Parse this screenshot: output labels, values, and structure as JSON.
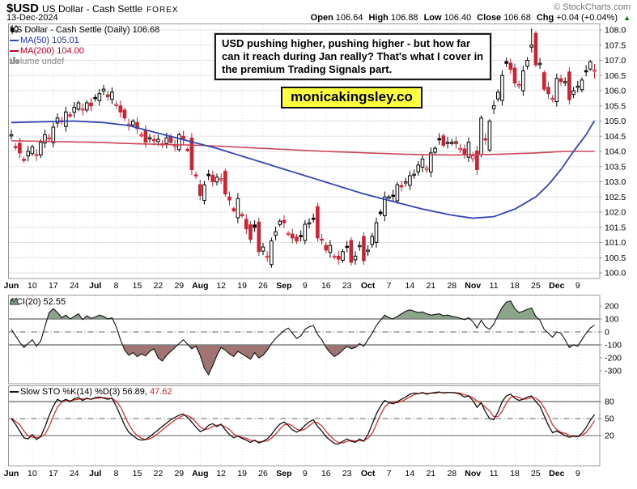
{
  "header": {
    "symbol": "$USD",
    "name": "US Dollar - Cash Settle",
    "exchange": "FOREX",
    "copyright": "© StockCharts.com",
    "date": "13-Dec-2024",
    "quote": {
      "open_label": "Open",
      "open_value": "106.64",
      "high_label": "High",
      "high_value": "106.88",
      "low_label": "Low",
      "low_value": "106.40",
      "close_label": "Close",
      "close_value": "106.68",
      "chg_label": "Chg",
      "chg_value": "+0.04 (+0.04%)",
      "chg_arrow": "▲"
    }
  },
  "price_panel": {
    "legend_title": "US Dollar - Cash Settle (Daily) 106.68",
    "legend_ma50": "MA(50) 105.01",
    "legend_ma200": "MA(200) 104.00",
    "legend_volume": "Volume undef",
    "annotation": "USD pushing higher, pushing higher - but how far can it reach during Jan really? That's what I cover in the premium Trading Signals part.",
    "watermark": "monicakingsley.co",
    "y_ticks": [
      "108.0",
      "107.5",
      "107.0",
      "106.5",
      "106.0",
      "105.5",
      "105.0",
      "104.5",
      "104.0",
      "103.5",
      "103.0",
      "102.5",
      "102.0",
      "101.5",
      "101.0",
      "100.5",
      "100.0"
    ]
  },
  "cci_panel": {
    "legend": "CCI(20) 52.55",
    "y_ticks": [
      "200",
      "100",
      "0",
      "-100",
      "-200",
      "-300"
    ]
  },
  "sto_panel": {
    "legend_black": "Slow STO %K(14) %D(3) 56.89,",
    "legend_red": "47.62",
    "y_ticks": [
      "80",
      "50",
      "20"
    ]
  },
  "x_axis": [
    [
      "Jun",
      1
    ],
    [
      "10",
      0
    ],
    [
      "17",
      0
    ],
    [
      "24",
      0
    ],
    [
      "Jul",
      1
    ],
    [
      "8",
      0
    ],
    [
      "15",
      0
    ],
    [
      "22",
      0
    ],
    [
      "29",
      0
    ],
    [
      "Aug",
      1
    ],
    [
      "12",
      0
    ],
    [
      "19",
      0
    ],
    [
      "26",
      0
    ],
    [
      "Sep",
      1
    ],
    [
      "9",
      0
    ],
    [
      "16",
      0
    ],
    [
      "23",
      0
    ],
    [
      "Oct",
      1
    ],
    [
      "7",
      0
    ],
    [
      "14",
      0
    ],
    [
      "21",
      0
    ],
    [
      "28",
      0
    ],
    [
      "Nov",
      1
    ],
    [
      "11",
      0
    ],
    [
      "18",
      0
    ],
    [
      "25",
      0
    ],
    [
      "Dec",
      1
    ],
    [
      "9",
      0
    ]
  ],
  "colors": {
    "candle_up": "#000000",
    "candle_down": "#cc2233",
    "ma50": "#3346b4",
    "ma200": "#cc4455",
    "cci_line": "#111111",
    "cci_fill_up": "#8ba58b",
    "cci_fill_dn": "#a17474",
    "sto_k": "#111111",
    "sto_d": "#e62222",
    "grid": "#e6e6e6",
    "grid_dot": "#d9d9d9",
    "border": "#999999",
    "ref_line": "#808080",
    "highlight": "#ffff3d",
    "chg_up": "#007a00"
  },
  "chart_data": {
    "type": "candlestick",
    "title": "US Dollar - Cash Settle (Daily)",
    "frequency": "daily",
    "x_span": "Jun 2024 to 13-Dec-2024",
    "price_range": [
      100.0,
      108.0
    ],
    "closes": [
      104.55,
      104.15,
      103.95,
      103.7,
      104.0,
      104.15,
      103.9,
      104.3,
      104.55,
      104.45,
      104.8,
      105.1,
      105.0,
      105.3,
      105.2,
      105.45,
      105.6,
      105.4,
      105.6,
      105.5,
      105.75,
      105.9,
      106.05,
      105.8,
      105.95,
      105.55,
      105.3,
      105.1,
      104.9,
      105.0,
      104.75,
      104.55,
      104.3,
      104.45,
      104.35,
      104.4,
      104.25,
      104.45,
      104.3,
      104.2,
      104.55,
      104.4,
      104.05,
      103.4,
      103.2,
      102.55,
      102.9,
      103.2,
      103.0,
      103.15,
      103.1,
      102.6,
      102.4,
      102.05,
      102.45,
      101.9,
      101.45,
      101.1,
      101.5,
      100.7,
      100.85,
      100.55,
      101.05,
      101.35,
      101.7,
      101.65,
      101.3,
      101.15,
      101.05,
      101.2,
      101.6,
      101.65,
      101.8,
      101.15,
      101.1,
      100.75,
      100.9,
      100.55,
      100.45,
      100.7,
      100.85,
      100.35,
      100.55,
      100.9,
      100.4,
      100.75,
      101.2,
      101.65,
      101.95,
      102.5,
      102.5,
      102.55,
      102.9,
      102.85,
      103.0,
      103.2,
      103.25,
      103.55,
      103.75,
      103.45,
      103.95,
      104.1,
      104.4,
      104.2,
      104.3,
      104.3,
      104.25,
      104.1,
      103.9,
      104.3,
      103.85,
      103.4,
      105.1,
      104.4,
      105.0,
      105.5,
      105.95,
      106.5,
      106.9,
      106.7,
      106.25,
      106.2,
      106.65,
      107.0,
      107.5,
      106.85,
      106.9,
      106.05,
      105.9,
      105.75,
      106.4,
      106.3,
      106.3,
      105.7,
      106.0,
      106.15,
      106.35,
      106.65,
      106.95,
      106.68
    ],
    "last_candle": {
      "open": 106.64,
      "high": 106.88,
      "low": 106.4,
      "close": 106.68
    },
    "high_spike": {
      "index": 124,
      "high": 108.05
    },
    "ma50_points": [
      [
        0,
        104.95
      ],
      [
        15,
        105.0
      ],
      [
        22,
        104.95
      ],
      [
        28,
        104.85
      ],
      [
        35,
        104.6
      ],
      [
        42,
        104.35
      ],
      [
        49,
        104.1
      ],
      [
        56,
        103.8
      ],
      [
        63,
        103.5
      ],
      [
        70,
        103.2
      ],
      [
        77,
        102.9
      ],
      [
        84,
        102.6
      ],
      [
        91,
        102.35
      ],
      [
        98,
        102.1
      ],
      [
        105,
        101.9
      ],
      [
        110,
        101.8
      ],
      [
        115,
        101.85
      ],
      [
        120,
        102.1
      ],
      [
        125,
        102.5
      ],
      [
        128,
        102.9
      ],
      [
        131,
        103.4
      ],
      [
        134,
        104.0
      ],
      [
        137,
        104.55
      ],
      [
        139,
        105.01
      ]
    ],
    "ma200_points": [
      [
        0,
        104.35
      ],
      [
        20,
        104.3
      ],
      [
        30,
        104.25
      ],
      [
        45,
        104.2
      ],
      [
        60,
        104.1
      ],
      [
        75,
        104.0
      ],
      [
        85,
        103.95
      ],
      [
        95,
        103.9
      ],
      [
        105,
        103.88
      ],
      [
        115,
        103.9
      ],
      [
        125,
        103.95
      ],
      [
        132,
        104.0
      ],
      [
        139,
        104.0
      ]
    ],
    "cci_range": [
      -350,
      280
    ],
    "cci": [
      20,
      -30,
      -80,
      -120,
      -90,
      -60,
      -110,
      -70,
      40,
      150,
      180,
      150,
      110,
      130,
      100,
      120,
      140,
      95,
      125,
      105,
      115,
      130,
      120,
      100,
      110,
      40,
      -60,
      -140,
      -180,
      -160,
      -190,
      -170,
      -185,
      -150,
      -130,
      -200,
      -225,
      -180,
      -150,
      -120,
      -90,
      -60,
      -95,
      -130,
      -110,
      -180,
      -280,
      -330,
      -260,
      -180,
      -120,
      -140,
      -170,
      -190,
      -150,
      -170,
      -190,
      -210,
      -160,
      -200,
      -180,
      -140,
      -90,
      -50,
      -20,
      10,
      30,
      -10,
      -50,
      -30,
      20,
      40,
      50,
      -20,
      -60,
      -120,
      -160,
      -190,
      -170,
      -140,
      -110,
      -130,
      -120,
      -90,
      -110,
      -60,
      -10,
      50,
      90,
      130,
      110,
      100,
      120,
      140,
      160,
      170,
      160,
      150,
      155,
      140,
      130,
      135,
      140,
      125,
      130,
      120,
      115,
      105,
      95,
      110,
      80,
      30,
      90,
      40,
      20,
      60,
      130,
      190,
      230,
      240,
      180,
      150,
      160,
      175,
      185,
      120,
      90,
      20,
      -10,
      -40,
      0,
      -10,
      -60,
      -120,
      -100,
      -110,
      -60,
      -10,
      30,
      52.55
    ],
    "sto_range": [
      0,
      100
    ],
    "stoch_k": [
      50,
      40,
      28,
      16,
      14,
      22,
      13,
      18,
      35,
      55,
      72,
      84,
      80,
      84,
      80,
      85,
      87,
      82,
      86,
      84,
      87,
      88,
      86,
      84,
      86,
      72,
      55,
      38,
      26,
      20,
      14,
      12,
      13,
      18,
      24,
      30,
      36,
      42,
      48,
      52,
      56,
      58,
      52,
      44,
      35,
      27,
      30,
      38,
      41,
      36,
      40,
      30,
      22,
      16,
      19,
      15,
      12,
      8,
      12,
      7,
      10,
      14,
      22,
      32,
      40,
      44,
      38,
      30,
      26,
      30,
      38,
      44,
      48,
      36,
      28,
      18,
      12,
      6,
      5,
      10,
      14,
      10,
      8,
      14,
      10,
      22,
      40,
      58,
      72,
      82,
      78,
      76,
      80,
      84,
      88,
      93,
      95,
      94,
      96,
      93,
      95,
      96,
      97,
      95,
      96,
      96,
      95,
      93,
      88,
      90,
      82,
      70,
      78,
      62,
      50,
      48,
      62,
      80,
      90,
      93,
      86,
      82,
      84,
      88,
      90,
      80,
      72,
      55,
      38,
      25,
      28,
      24,
      20,
      17,
      19,
      18,
      24,
      34,
      47,
      56.89
    ]
  }
}
